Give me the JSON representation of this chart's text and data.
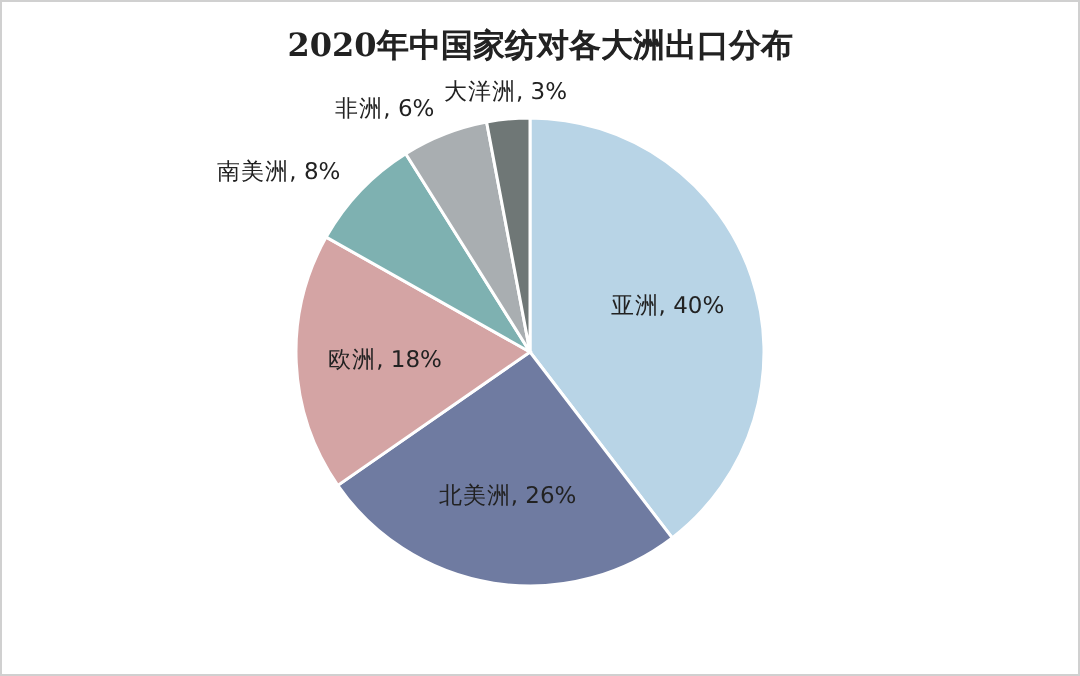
{
  "chart_data": {
    "type": "pie",
    "title": "2020年中国家纺对各大洲出口分布",
    "categories": [
      "亚洲",
      "北美洲",
      "欧洲",
      "南美洲",
      "非洲",
      "大洋洲"
    ],
    "values": [
      40,
      26,
      18,
      8,
      6,
      3
    ],
    "value_labels": [
      "40%",
      "26%",
      "18%",
      "8%",
      "6%",
      "3%"
    ],
    "colors": [
      "#b8d4e6",
      "#6f7ba1",
      "#d4a4a4",
      "#7eb1b1",
      "#a9aeb1",
      "#6f7776"
    ]
  }
}
